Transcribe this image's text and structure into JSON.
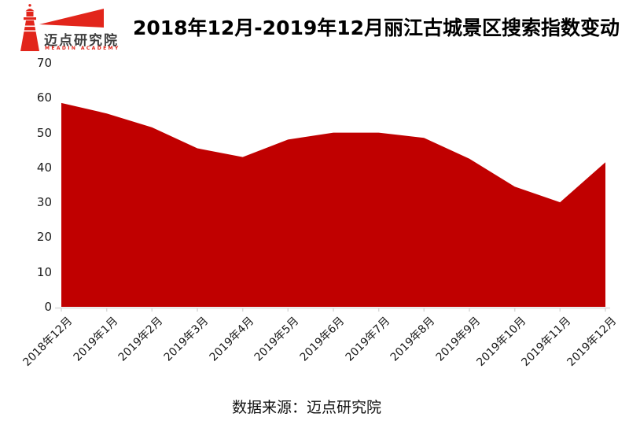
{
  "logo": {
    "name": "迈点研究院",
    "subtitle": "MEADIN ACADEMY",
    "brand_color": "#e2251b",
    "text_color": "#3d3d3d"
  },
  "source": "数据来源：迈点研究院",
  "chart_data": {
    "type": "area",
    "title": "2018年12月-2019年12月丽江古城景区搜索指数变动",
    "categories": [
      "2018年12月",
      "2019年1月",
      "2019年2月",
      "2019年3月",
      "2019年4月",
      "2019年5月",
      "2019年6月",
      "2019年7月",
      "2019年8月",
      "2019年9月",
      "2019年10月",
      "2019年11月",
      "2019年12月"
    ],
    "values": [
      58.5,
      55.5,
      51.5,
      45.5,
      43,
      48,
      50,
      50,
      48.5,
      42.5,
      34.5,
      30,
      41.5
    ],
    "xlabel": "",
    "ylabel": "",
    "ylim": [
      0,
      70
    ],
    "y_ticks": [
      0,
      10,
      20,
      30,
      40,
      50,
      60,
      70
    ],
    "grid": false,
    "legend": false,
    "fill_color": "#c00000",
    "axis_color": "#d9d9d9"
  }
}
